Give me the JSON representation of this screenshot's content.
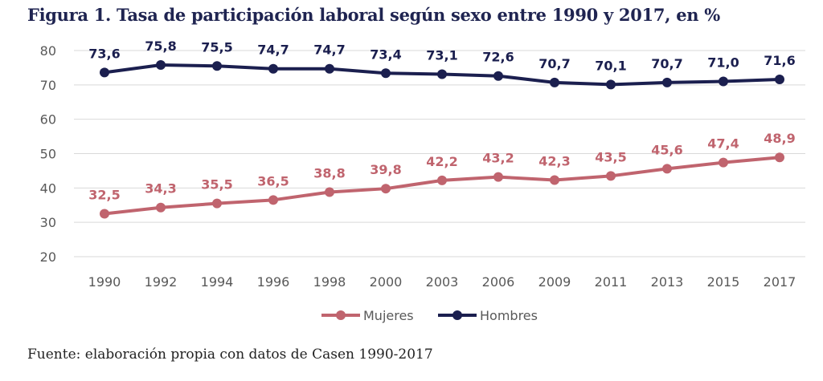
{
  "chart_data": {
    "type": "line",
    "title": "Figura 1. Tasa de participación laboral según sexo entre 1990 y 2017, en %",
    "categories": [
      "1990",
      "1992",
      "1994",
      "1996",
      "1998",
      "2000",
      "2003",
      "2006",
      "2009",
      "2011",
      "2013",
      "2015",
      "2017"
    ],
    "series": [
      {
        "name": "Mujeres",
        "color": "#c0646e",
        "values": [
          32.5,
          34.3,
          35.5,
          36.5,
          38.8,
          39.8,
          42.2,
          43.2,
          42.3,
          43.5,
          45.6,
          47.4,
          48.9
        ],
        "labels": [
          "32,5",
          "34,3",
          "35,5",
          "36,5",
          "38,8",
          "39,8",
          "42,2",
          "43,2",
          "42,3",
          "43,5",
          "45,6",
          "47,4",
          "48,9"
        ]
      },
      {
        "name": "Hombres",
        "color": "#1b1f4f",
        "values": [
          73.6,
          75.8,
          75.5,
          74.7,
          74.7,
          73.4,
          73.1,
          72.6,
          70.7,
          70.1,
          70.7,
          71.0,
          71.6
        ],
        "labels": [
          "73,6",
          "75,8",
          "75,5",
          "74,7",
          "74,7",
          "73,4",
          "73,1",
          "72,6",
          "70,7",
          "70,1",
          "70,7",
          "71,0",
          "71,6"
        ]
      }
    ],
    "ylim": [
      20,
      80
    ],
    "yticks": [
      20,
      30,
      40,
      50,
      60,
      70,
      80
    ],
    "grid": true,
    "legend": "bottom",
    "xlabel": "",
    "ylabel": ""
  },
  "source": "Fuente: elaboración propia con datos de Casen 1990-2017"
}
